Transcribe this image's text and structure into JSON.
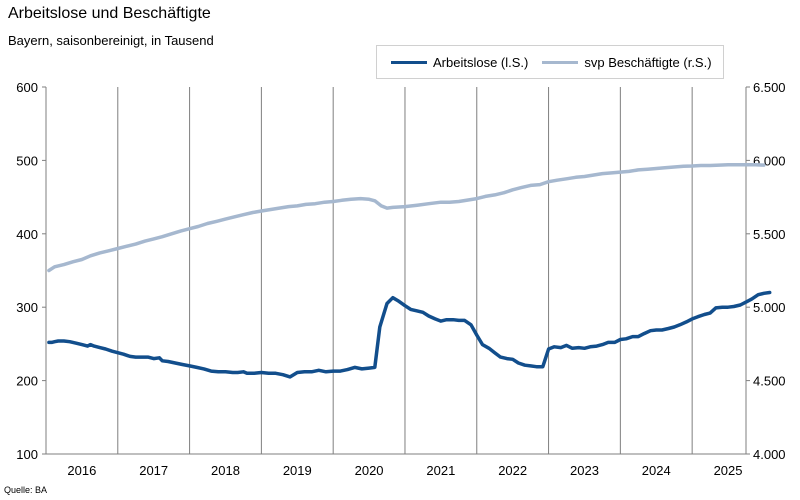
{
  "chart_data": {
    "type": "line",
    "title": "Arbeitslose und Beschäftigte",
    "subtitle": "Bayern, saisonbereinigt, in Tausend",
    "source": "Quelle: BA",
    "x_labels": [
      "2016",
      "2017",
      "2018",
      "2019",
      "2020",
      "2021",
      "2022",
      "2023",
      "2024",
      "2025"
    ],
    "x_range": [
      2015.5,
      2025.25
    ],
    "y_left": {
      "ylim": [
        100,
        600
      ],
      "ticks": [
        "100",
        "200",
        "300",
        "400",
        "500",
        "600"
      ]
    },
    "y_right": {
      "ylim": [
        4000,
        6500
      ],
      "ticks": [
        "4.000",
        "4.500",
        "5.000",
        "5.500",
        "6.000",
        "6.500"
      ]
    },
    "series": [
      {
        "name": "Arbeitslose (l.S.)",
        "axis": "left",
        "color": "#124e8c",
        "points": [
          [
            2015.54,
            252
          ],
          [
            2015.58,
            252
          ],
          [
            2015.62,
            253
          ],
          [
            2015.67,
            254
          ],
          [
            2015.75,
            254
          ],
          [
            2015.83,
            253
          ],
          [
            2015.92,
            251
          ],
          [
            2016.0,
            249
          ],
          [
            2016.08,
            247
          ],
          [
            2016.12,
            249
          ],
          [
            2016.17,
            247
          ],
          [
            2016.25,
            245
          ],
          [
            2016.33,
            243
          ],
          [
            2016.42,
            240
          ],
          [
            2016.5,
            238
          ],
          [
            2016.58,
            236
          ],
          [
            2016.67,
            233
          ],
          [
            2016.75,
            232
          ],
          [
            2016.83,
            232
          ],
          [
            2016.92,
            232
          ],
          [
            2017.0,
            230
          ],
          [
            2017.08,
            231
          ],
          [
            2017.12,
            227
          ],
          [
            2017.2,
            226
          ],
          [
            2017.3,
            224
          ],
          [
            2017.4,
            222
          ],
          [
            2017.5,
            220
          ],
          [
            2017.6,
            218
          ],
          [
            2017.7,
            216
          ],
          [
            2017.8,
            213
          ],
          [
            2017.9,
            212
          ],
          [
            2018.0,
            212
          ],
          [
            2018.1,
            211
          ],
          [
            2018.17,
            211
          ],
          [
            2018.25,
            212
          ],
          [
            2018.3,
            210
          ],
          [
            2018.4,
            210
          ],
          [
            2018.5,
            211
          ],
          [
            2018.6,
            210
          ],
          [
            2018.7,
            210
          ],
          [
            2018.8,
            208
          ],
          [
            2018.9,
            205
          ],
          [
            2019.0,
            211
          ],
          [
            2019.1,
            212
          ],
          [
            2019.2,
            212
          ],
          [
            2019.3,
            214
          ],
          [
            2019.4,
            212
          ],
          [
            2019.5,
            213
          ],
          [
            2019.6,
            213
          ],
          [
            2019.7,
            215
          ],
          [
            2019.8,
            218
          ],
          [
            2019.9,
            216
          ],
          [
            2020.0,
            217
          ],
          [
            2020.08,
            218
          ],
          [
            2020.15,
            273
          ],
          [
            2020.25,
            305
          ],
          [
            2020.33,
            313
          ],
          [
            2020.4,
            309
          ],
          [
            2020.5,
            302
          ],
          [
            2020.58,
            297
          ],
          [
            2020.67,
            295
          ],
          [
            2020.75,
            293
          ],
          [
            2020.83,
            288
          ],
          [
            2020.92,
            284
          ],
          [
            2021.0,
            281
          ],
          [
            2021.08,
            283
          ],
          [
            2021.17,
            283
          ],
          [
            2021.25,
            282
          ],
          [
            2021.33,
            282
          ],
          [
            2021.42,
            276
          ],
          [
            2021.5,
            262
          ],
          [
            2021.58,
            249
          ],
          [
            2021.67,
            244
          ],
          [
            2021.75,
            238
          ],
          [
            2021.83,
            232
          ],
          [
            2021.92,
            230
          ],
          [
            2022.0,
            229
          ],
          [
            2022.08,
            224
          ],
          [
            2022.17,
            221
          ],
          [
            2022.25,
            220
          ],
          [
            2022.33,
            219
          ],
          [
            2022.42,
            219
          ],
          [
            2022.5,
            243
          ],
          [
            2022.58,
            246
          ],
          [
            2022.67,
            245
          ],
          [
            2022.75,
            248
          ],
          [
            2022.83,
            244
          ],
          [
            2022.92,
            245
          ],
          [
            2023.0,
            244
          ],
          [
            2023.08,
            246
          ],
          [
            2023.17,
            247
          ],
          [
            2023.25,
            249
          ],
          [
            2023.33,
            252
          ],
          [
            2023.42,
            252
          ],
          [
            2023.5,
            256
          ],
          [
            2023.58,
            257
          ],
          [
            2023.67,
            260
          ],
          [
            2023.75,
            260
          ],
          [
            2023.83,
            264
          ],
          [
            2023.92,
            268
          ],
          [
            2024.0,
            269
          ],
          [
            2024.08,
            269
          ],
          [
            2024.17,
            271
          ],
          [
            2024.25,
            273
          ],
          [
            2024.33,
            276
          ],
          [
            2024.42,
            280
          ],
          [
            2024.5,
            284
          ],
          [
            2024.58,
            287
          ],
          [
            2024.67,
            290
          ],
          [
            2024.75,
            292
          ],
          [
            2024.83,
            299
          ],
          [
            2024.92,
            300
          ],
          [
            2025.0,
            300
          ],
          [
            2025.08,
            301
          ],
          [
            2025.17,
            303
          ],
          [
            2025.25,
            307
          ],
          [
            2025.33,
            311
          ],
          [
            2025.42,
            317
          ],
          [
            2025.5,
            319
          ],
          [
            2025.58,
            320
          ]
        ]
      },
      {
        "name": "svp Beschäftigte (r.S.)",
        "axis": "right",
        "color": "#a6b8cf",
        "points": [
          [
            2015.54,
            5250
          ],
          [
            2015.62,
            5275
          ],
          [
            2015.75,
            5290
          ],
          [
            2015.88,
            5310
          ],
          [
            2016.0,
            5325
          ],
          [
            2016.12,
            5350
          ],
          [
            2016.25,
            5370
          ],
          [
            2016.38,
            5385
          ],
          [
            2016.5,
            5400
          ],
          [
            2016.62,
            5415
          ],
          [
            2016.75,
            5430
          ],
          [
            2016.88,
            5450
          ],
          [
            2017.0,
            5465
          ],
          [
            2017.12,
            5480
          ],
          [
            2017.25,
            5500
          ],
          [
            2017.38,
            5520
          ],
          [
            2017.5,
            5535
          ],
          [
            2017.62,
            5550
          ],
          [
            2017.75,
            5570
          ],
          [
            2017.88,
            5585
          ],
          [
            2018.0,
            5600
          ],
          [
            2018.12,
            5615
          ],
          [
            2018.25,
            5630
          ],
          [
            2018.38,
            5645
          ],
          [
            2018.5,
            5655
          ],
          [
            2018.62,
            5665
          ],
          [
            2018.75,
            5675
          ],
          [
            2018.88,
            5685
          ],
          [
            2019.0,
            5690
          ],
          [
            2019.12,
            5700
          ],
          [
            2019.25,
            5705
          ],
          [
            2019.38,
            5715
          ],
          [
            2019.5,
            5720
          ],
          [
            2019.62,
            5728
          ],
          [
            2019.75,
            5735
          ],
          [
            2019.88,
            5740
          ],
          [
            2020.0,
            5735
          ],
          [
            2020.08,
            5725
          ],
          [
            2020.17,
            5690
          ],
          [
            2020.25,
            5675
          ],
          [
            2020.33,
            5680
          ],
          [
            2020.5,
            5685
          ],
          [
            2020.67,
            5695
          ],
          [
            2020.83,
            5705
          ],
          [
            2021.0,
            5715
          ],
          [
            2021.12,
            5715
          ],
          [
            2021.25,
            5720
          ],
          [
            2021.38,
            5730
          ],
          [
            2021.5,
            5740
          ],
          [
            2021.62,
            5755
          ],
          [
            2021.75,
            5765
          ],
          [
            2021.88,
            5780
          ],
          [
            2022.0,
            5800
          ],
          [
            2022.12,
            5815
          ],
          [
            2022.25,
            5830
          ],
          [
            2022.38,
            5835
          ],
          [
            2022.5,
            5855
          ],
          [
            2022.62,
            5865
          ],
          [
            2022.75,
            5875
          ],
          [
            2022.88,
            5885
          ],
          [
            2023.0,
            5890
          ],
          [
            2023.12,
            5900
          ],
          [
            2023.25,
            5910
          ],
          [
            2023.38,
            5915
          ],
          [
            2023.5,
            5920
          ],
          [
            2023.62,
            5925
          ],
          [
            2023.75,
            5935
          ],
          [
            2023.88,
            5940
          ],
          [
            2024.0,
            5945
          ],
          [
            2024.12,
            5950
          ],
          [
            2024.25,
            5955
          ],
          [
            2024.38,
            5960
          ],
          [
            2024.5,
            5962
          ],
          [
            2024.62,
            5965
          ],
          [
            2024.75,
            5965
          ],
          [
            2024.88,
            5968
          ],
          [
            2025.0,
            5970
          ],
          [
            2025.12,
            5970
          ],
          [
            2025.25,
            5970
          ],
          [
            2025.38,
            5970
          ],
          [
            2025.5,
            5968
          ]
        ]
      }
    ]
  }
}
